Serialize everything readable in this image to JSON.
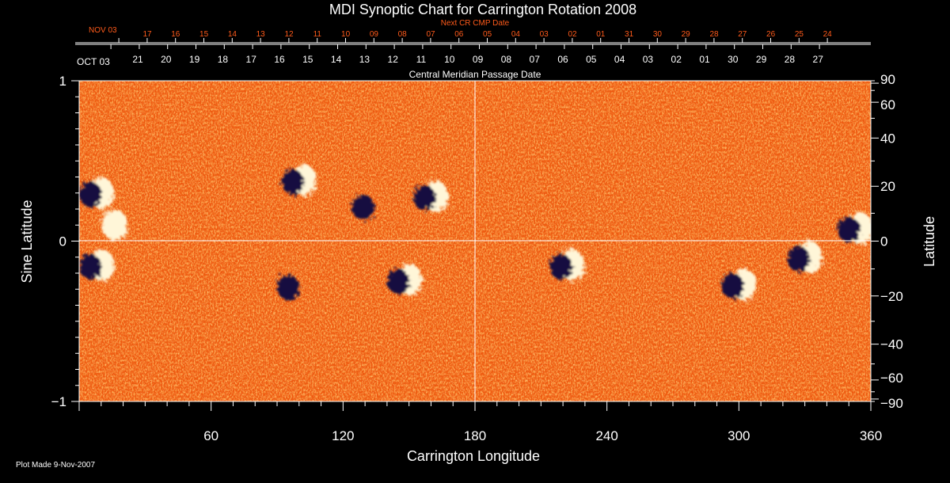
{
  "chart_data": {
    "type": "heatmap",
    "title": "MDI Synoptic Chart for Carrington Rotation 2008",
    "xlabel": "Carrington Longitude",
    "ylabel_left": "Sine Latitude",
    "ylabel_right": "Latitude",
    "xlim": [
      0,
      360
    ],
    "ylim": [
      -1,
      1
    ],
    "x_ticks": [
      60,
      120,
      180,
      240,
      300,
      360
    ],
    "y_ticks_left": [
      -1,
      0,
      1
    ],
    "y_ticks_right": [
      90,
      60,
      40,
      20,
      0,
      -20,
      -40,
      -60,
      -90
    ],
    "top_axis": {
      "label": "Central Meridian Passage Date",
      "start_label": "OCT 03",
      "dates": [
        "21",
        "20",
        "19",
        "18",
        "17",
        "16",
        "15",
        "14",
        "13",
        "12",
        "11",
        "10",
        "09",
        "08",
        "07",
        "06",
        "05",
        "04",
        "03",
        "02",
        "01",
        "30",
        "29",
        "28",
        "27"
      ]
    },
    "next_axis": {
      "label": "Next CR CMP Date",
      "start_label": "NOV 03",
      "dates": [
        "17",
        "16",
        "15",
        "14",
        "13",
        "12",
        "11",
        "10",
        "09",
        "08",
        "07",
        "06",
        "05",
        "04",
        "03",
        "02",
        "01",
        "31",
        "30",
        "29",
        "28",
        "27",
        "26",
        "25",
        "24"
      ]
    },
    "active_regions": [
      {
        "lon": 8,
        "sinlat": 0.3,
        "polarity": "mixed"
      },
      {
        "lon": 14,
        "sinlat": 0.1,
        "polarity": "positive"
      },
      {
        "lon": 8,
        "sinlat": -0.15,
        "polarity": "mixed"
      },
      {
        "lon": 100,
        "sinlat": 0.38,
        "polarity": "mixed"
      },
      {
        "lon": 98,
        "sinlat": -0.28,
        "polarity": "negative"
      },
      {
        "lon": 160,
        "sinlat": 0.28,
        "polarity": "mixed"
      },
      {
        "lon": 148,
        "sinlat": -0.24,
        "polarity": "mixed"
      },
      {
        "lon": 222,
        "sinlat": -0.15,
        "polarity": "mixed"
      },
      {
        "lon": 300,
        "sinlat": -0.27,
        "polarity": "mixed"
      },
      {
        "lon": 353,
        "sinlat": 0.08,
        "polarity": "mixed"
      },
      {
        "lon": 330,
        "sinlat": -0.1,
        "polarity": "mixed"
      },
      {
        "lon": 132,
        "sinlat": 0.22,
        "polarity": "negative"
      }
    ]
  },
  "footer": {
    "plot_made": "Plot Made  9-Nov-2007"
  }
}
